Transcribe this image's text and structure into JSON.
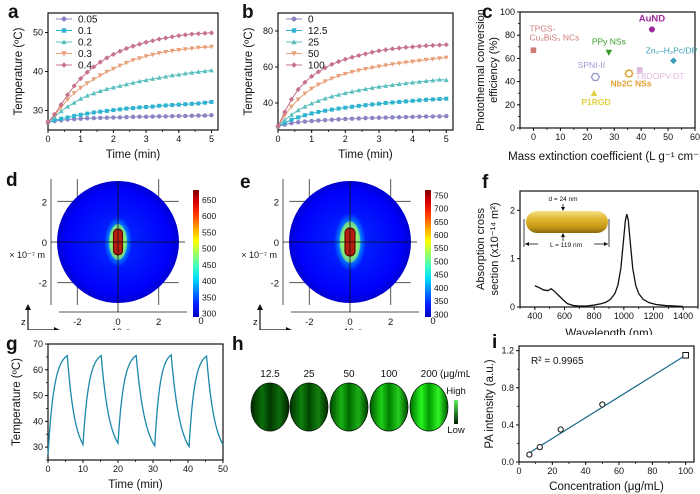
{
  "panels": {
    "a": "a",
    "b": "b",
    "c": "c",
    "d": "d",
    "e": "e",
    "f": "f",
    "g": "g",
    "h": "h",
    "i": "i"
  },
  "chart_data": [
    {
      "id": "a",
      "type": "line",
      "title": "",
      "xlabel": "Time (min)",
      "ylabel": "Temperature (ºC)",
      "xlim": [
        0,
        5.2
      ],
      "ylim": [
        25,
        55
      ],
      "xticks": [
        0,
        1,
        2,
        3,
        4,
        5
      ],
      "yticks": [
        30,
        40,
        50
      ],
      "legend_position": "top-left",
      "x": [
        0,
        0.2,
        0.4,
        0.6,
        0.8,
        1.0,
        1.2,
        1.4,
        1.6,
        1.8,
        2.0,
        2.2,
        2.4,
        2.6,
        2.8,
        3.0,
        3.2,
        3.4,
        3.6,
        3.8,
        4.0,
        4.2,
        4.4,
        4.6,
        4.8,
        5.0
      ],
      "series": [
        {
          "name": "0.05",
          "color": "#8a86c4",
          "marker": "circle",
          "values": [
            27.0,
            27.3,
            27.5,
            27.7,
            27.8,
            27.9,
            28.0,
            28.05,
            28.1,
            28.15,
            28.2,
            28.25,
            28.3,
            28.35,
            28.4,
            28.4,
            28.45,
            28.5,
            28.5,
            28.55,
            28.6,
            28.6,
            28.65,
            28.7,
            28.7,
            28.8
          ]
        },
        {
          "name": "0.1",
          "color": "#2fb3d1",
          "marker": "square",
          "values": [
            27.0,
            27.5,
            27.9,
            28.2,
            28.6,
            28.9,
            29.2,
            29.5,
            29.7,
            29.9,
            30.1,
            30.3,
            30.5,
            30.6,
            30.8,
            30.9,
            31.0,
            31.2,
            31.3,
            31.4,
            31.5,
            31.6,
            31.7,
            31.8,
            32.0,
            32.2
          ]
        },
        {
          "name": "0.2",
          "color": "#5cbfbf",
          "marker": "triangle-up",
          "values": [
            27.0,
            28.3,
            29.8,
            31.0,
            32.0,
            33.0,
            33.8,
            34.4,
            35.0,
            35.5,
            35.9,
            36.3,
            36.7,
            37.1,
            37.5,
            37.8,
            38.1,
            38.4,
            38.7,
            39.0,
            39.2,
            39.5,
            39.7,
            39.9,
            40.1,
            40.3
          ]
        },
        {
          "name": "0.3",
          "color": "#e8a07a",
          "marker": "triangle-down",
          "values": [
            27.0,
            28.8,
            30.8,
            32.8,
            34.5,
            35.8,
            37.0,
            38.0,
            39.0,
            39.9,
            40.7,
            41.5,
            42.2,
            42.9,
            43.4,
            43.9,
            44.3,
            44.7,
            45.0,
            45.3,
            45.5,
            45.7,
            45.9,
            46.1,
            46.2,
            46.3
          ]
        },
        {
          "name": "0.4",
          "color": "#c7728b",
          "marker": "diamond",
          "values": [
            27.0,
            29.0,
            31.5,
            34.0,
            36.3,
            38.2,
            39.8,
            41.2,
            42.4,
            43.5,
            44.4,
            45.2,
            45.9,
            46.5,
            47.0,
            47.5,
            47.9,
            48.3,
            48.6,
            48.9,
            49.2,
            49.4,
            49.6,
            49.7,
            49.8,
            49.9
          ]
        }
      ]
    },
    {
      "id": "b",
      "type": "line",
      "title": "",
      "xlabel": "Time (min)",
      "ylabel": "Temperature (ºC)",
      "xlim": [
        0,
        5.2
      ],
      "ylim": [
        25,
        90
      ],
      "xticks": [
        0,
        1,
        2,
        3,
        4,
        5
      ],
      "yticks": [
        40,
        60,
        80
      ],
      "legend_position": "top-left",
      "x": [
        0,
        0.2,
        0.4,
        0.6,
        0.8,
        1.0,
        1.2,
        1.4,
        1.6,
        1.8,
        2.0,
        2.2,
        2.4,
        2.6,
        2.8,
        3.0,
        3.2,
        3.4,
        3.6,
        3.8,
        4.0,
        4.2,
        4.4,
        4.6,
        4.8,
        5.0
      ],
      "series": [
        {
          "name": "0",
          "color": "#8a86c4",
          "marker": "circle",
          "values": [
            27.0,
            28.0,
            28.8,
            29.3,
            29.7,
            30.0,
            30.3,
            30.5,
            30.7,
            30.9,
            31.1,
            31.3,
            31.4,
            31.6,
            31.7,
            31.8,
            31.9,
            32.0,
            32.1,
            32.2,
            32.3,
            32.4,
            32.5,
            32.5,
            32.6,
            32.7
          ]
        },
        {
          "name": "12.5",
          "color": "#2fb3d1",
          "marker": "square",
          "values": [
            27.0,
            29.0,
            30.7,
            32.0,
            33.2,
            34.2,
            35.0,
            35.7,
            36.3,
            36.9,
            37.4,
            37.9,
            38.4,
            38.8,
            39.2,
            39.6,
            40.0,
            40.3,
            40.6,
            40.9,
            41.2,
            41.5,
            41.8,
            42.0,
            42.2,
            42.4
          ]
        },
        {
          "name": "25",
          "color": "#5cbfbf",
          "marker": "triangle-up",
          "values": [
            27.0,
            30.5,
            33.5,
            36.0,
            38.0,
            39.7,
            41.2,
            42.5,
            43.6,
            44.6,
            45.5,
            46.3,
            47.1,
            47.8,
            48.4,
            49.0,
            49.5,
            50.0,
            50.5,
            51.0,
            51.4,
            51.8,
            52.2,
            52.6,
            53.0,
            52.8
          ]
        },
        {
          "name": "50",
          "color": "#e8a07a",
          "marker": "triangle-down",
          "values": [
            27.0,
            33.0,
            38.0,
            42.0,
            45.3,
            48.0,
            50.2,
            52.0,
            53.6,
            55.0,
            56.2,
            57.2,
            58.1,
            58.9,
            59.6,
            60.3,
            60.9,
            61.5,
            62.0,
            62.5,
            63.0,
            63.5,
            64.0,
            64.4,
            64.8,
            65.2
          ]
        },
        {
          "name": "100",
          "color": "#c7728b",
          "marker": "diamond",
          "values": [
            27.0,
            35.0,
            42.0,
            47.5,
            51.5,
            54.8,
            57.3,
            59.5,
            61.5,
            63.0,
            64.3,
            65.4,
            66.4,
            67.3,
            68.2,
            69.0,
            69.6,
            70.1,
            70.5,
            70.9,
            71.2,
            71.5,
            71.8,
            72.0,
            72.2,
            72.4
          ]
        }
      ]
    },
    {
      "id": "c",
      "type": "scatter",
      "title": "",
      "xlabel": "Mass extinction coefficient (L g⁻¹ cm⁻¹)",
      "ylabel": "Photothermal conversion efficiency (%)",
      "ylabel_line1": "Photothermal conversion",
      "ylabel_line2": "efficiency (%)",
      "xlim": [
        -5,
        60
      ],
      "ylim": [
        0,
        100
      ],
      "xticks": [
        0,
        10,
        20,
        30,
        40,
        50,
        60
      ],
      "yticks": [
        0,
        20,
        40,
        60,
        80,
        100
      ],
      "points": [
        {
          "label": "TPGS-Cu₃BiS₃ NCs",
          "label_line1": "TPGS-",
          "label_line2": "Cu₃BiS₃ NCs",
          "x": 0,
          "y": 67,
          "color": "#d07a7a",
          "marker": "square"
        },
        {
          "label": "PPy NSs",
          "x": 28,
          "y": 65,
          "color": "#3a9a2a",
          "marker": "triangle-down"
        },
        {
          "label": "AuND",
          "x": 44,
          "y": 85,
          "color": "#9c2a9c",
          "marker": "circle"
        },
        {
          "label": "Zn₄–H₂Pc/DP",
          "x": 52,
          "y": 58,
          "color": "#3aa0b8",
          "marker": "diamond"
        },
        {
          "label": "SPNI-II",
          "x": 23,
          "y": 44,
          "color": "#9a9ad0",
          "marker": "hexagon-open"
        },
        {
          "label": "Nb2C NSs",
          "x": 35.5,
          "y": 47,
          "color": "#e0a030",
          "marker": "star-open"
        },
        {
          "label": "TBDOPV-DT",
          "x": 39.5,
          "y": 50,
          "color": "#e0b8e0",
          "marker": "square"
        },
        {
          "label": "P1RGD",
          "x": 22.5,
          "y": 30,
          "color": "#e0d040",
          "marker": "triangle-up"
        }
      ]
    },
    {
      "id": "d",
      "type": "heatmap",
      "title": "",
      "xlabel": "× 10⁻⁷ m",
      "ylabel": "× 10⁻⁷ m",
      "xticks": [
        -2,
        0,
        2
      ],
      "yticks": [
        2,
        0,
        -2
      ],
      "colorbar_ticks": [
        300,
        350,
        400,
        450,
        500,
        550,
        600,
        650
      ],
      "colorbar_range": [
        290,
        680
      ],
      "corner_label": "0",
      "axis_triad": {
        "vertical": "z",
        "horizontal": "y"
      }
    },
    {
      "id": "e",
      "type": "heatmap",
      "title": "",
      "xlabel": "× 10⁻⁷ m",
      "ylabel": "× 10⁻⁷ m",
      "xticks": [
        -2,
        0,
        2
      ],
      "yticks": [
        2,
        0,
        -2
      ],
      "colorbar_ticks": [
        300,
        350,
        400,
        450,
        500,
        550,
        600,
        650,
        700,
        750
      ],
      "colorbar_range": [
        290,
        770
      ],
      "corner_label": "0",
      "axis_triad": {
        "vertical": "z",
        "horizontal": "y"
      }
    },
    {
      "id": "f",
      "type": "line",
      "title": "",
      "xlabel": "Wavelength (nm)",
      "ylabel": "Absorption cross section (x10⁻¹⁴ m²)",
      "ylabel_line1": "Absorption cross",
      "ylabel_line2": "section (x10⁻¹⁴ m²)",
      "xlim": [
        300,
        1500
      ],
      "ylim": [
        0,
        2.4
      ],
      "xticks": [
        400,
        600,
        800,
        1000,
        1200,
        1400
      ],
      "yticks": [
        0,
        1,
        2
      ],
      "inset": {
        "diameter_label": "d = 24 nm",
        "length_label": "L = 119 nm"
      },
      "x": [
        400,
        430,
        460,
        490,
        510,
        530,
        560,
        590,
        620,
        660,
        700,
        750,
        800,
        850,
        880,
        910,
        940,
        960,
        980,
        1000,
        1010,
        1020,
        1030,
        1040,
        1060,
        1080,
        1100,
        1130,
        1170,
        1220,
        1280,
        1350,
        1400
      ],
      "values": [
        0.44,
        0.4,
        0.35,
        0.34,
        0.38,
        0.33,
        0.24,
        0.15,
        0.07,
        0.03,
        0.02,
        0.02,
        0.04,
        0.07,
        0.1,
        0.16,
        0.28,
        0.45,
        0.8,
        1.45,
        1.78,
        1.92,
        1.8,
        1.45,
        0.8,
        0.45,
        0.28,
        0.16,
        0.09,
        0.05,
        0.03,
        0.02,
        0.01
      ]
    },
    {
      "id": "g",
      "type": "line",
      "title": "",
      "xlabel": "Time (min)",
      "ylabel": "Temperature (ºC)",
      "xlim": [
        0,
        50
      ],
      "ylim": [
        25,
        70
      ],
      "xticks": [
        0,
        10,
        20,
        30,
        40,
        50
      ],
      "yticks": [
        30,
        40,
        50,
        60,
        70
      ],
      "color": "#1a88a8",
      "cycles": [
        {
          "on_start": 0,
          "off_start": 5.5,
          "end": 10,
          "peak": 65.5,
          "base": 31
        },
        {
          "on_start": 10,
          "off_start": 15.2,
          "end": 20,
          "peak": 65.5,
          "base": 31.5
        },
        {
          "on_start": 20,
          "off_start": 25.2,
          "end": 30.5,
          "peak": 65.5,
          "base": 30.5
        },
        {
          "on_start": 30.5,
          "off_start": 35.2,
          "end": 40.3,
          "peak": 65.8,
          "base": 30.2
        },
        {
          "on_start": 40.3,
          "off_start": 45.3,
          "end": 50,
          "peak": 65.3,
          "base": 31
        }
      ]
    },
    {
      "id": "h",
      "type": "heatmap",
      "title": "",
      "concentrations": [
        "12.5",
        "25",
        "50",
        "100",
        "200"
      ],
      "unit": "(μg/mL)",
      "intensities": [
        0.25,
        0.35,
        0.6,
        0.75,
        0.95
      ],
      "scale_high": "High",
      "scale_low": "Low"
    },
    {
      "id": "i",
      "type": "scatter",
      "title": "",
      "xlabel": "Concentration (μg/mL)",
      "ylabel": "PA intensity (a.u.)",
      "xlim": [
        0,
        105
      ],
      "ylim": [
        0,
        1.25
      ],
      "xticks": [
        0,
        20,
        40,
        60,
        80,
        100
      ],
      "yticks": [
        "0.0",
        "0.4",
        "0.8",
        "1.2"
      ],
      "annotation": "R² = 0.9965",
      "points": {
        "x": [
          6.25,
          12.5,
          25,
          50,
          100
        ],
        "y": [
          0.08,
          0.16,
          0.35,
          0.62,
          1.15
        ]
      },
      "fit": {
        "x": [
          6.25,
          100
        ],
        "y": [
          0.1,
          1.15
        ]
      },
      "fit_color": "#1a6a8a"
    }
  ]
}
